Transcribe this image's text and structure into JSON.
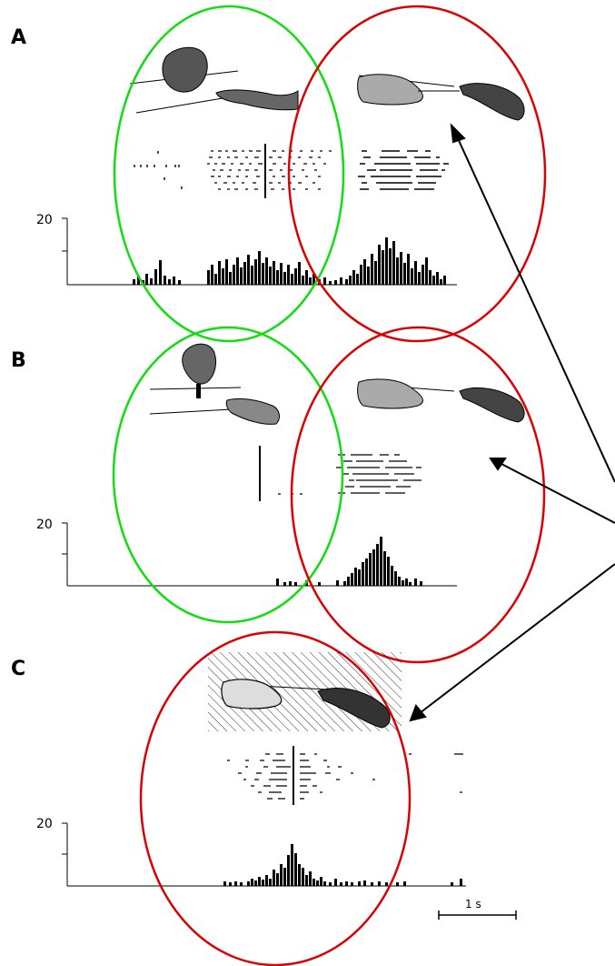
{
  "figure": {
    "panels": [
      {
        "letter": "A",
        "y_tick": "20",
        "conditions": [
          "grasping an object with a hand",
          "grasping with a tool (pliers)"
        ]
      },
      {
        "letter": "B",
        "y_tick": "20",
        "conditions": [
          "object held by a tool",
          "grasping with a tool (pliers)"
        ]
      },
      {
        "letter": "C",
        "y_tick": "20",
        "conditions": [
          "grasping with a tool, hatched"
        ]
      }
    ],
    "scale_bar": {
      "label": "1 s",
      "length_seconds": 1
    },
    "colors": {
      "green": "#11dd11",
      "red": "#dd0000",
      "ink": "#000000"
    }
  }
}
